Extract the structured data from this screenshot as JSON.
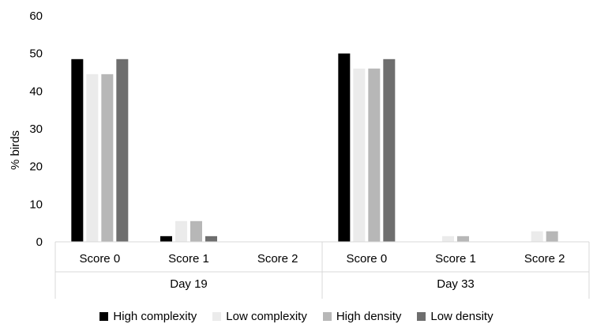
{
  "chart_data": {
    "type": "bar",
    "title": "",
    "ylabel": "% birds",
    "ylim": [
      0,
      60
    ],
    "yticks": [
      0,
      10,
      20,
      30,
      40,
      50,
      60
    ],
    "categories": [
      "Score 0",
      "Score 1",
      "Score 2",
      "Score 0",
      "Score 1",
      "Score 2"
    ],
    "groups": [
      {
        "label": "Day 19",
        "categories": [
          "Score 0",
          "Score 1",
          "Score 2"
        ]
      },
      {
        "label": "Day 33",
        "categories": [
          "Score 0",
          "Score 1",
          "Score 2"
        ]
      }
    ],
    "series": [
      {
        "name": "High complexity",
        "color": "#000000",
        "values": [
          48.5,
          1.5,
          0,
          50,
          0,
          0
        ]
      },
      {
        "name": "Low complexity",
        "color": "#ebebeb",
        "values": [
          44.5,
          5.5,
          0,
          46,
          1.5,
          2.8
        ]
      },
      {
        "name": "High density",
        "color": "#b7b7b7",
        "values": [
          44.5,
          5.5,
          0,
          46,
          1.5,
          2.8
        ]
      },
      {
        "name": "Low density",
        "color": "#6e6e6e",
        "values": [
          48.5,
          1.5,
          0,
          48.5,
          0,
          0
        ]
      }
    ],
    "grid": false,
    "legend_position": "bottom"
  }
}
